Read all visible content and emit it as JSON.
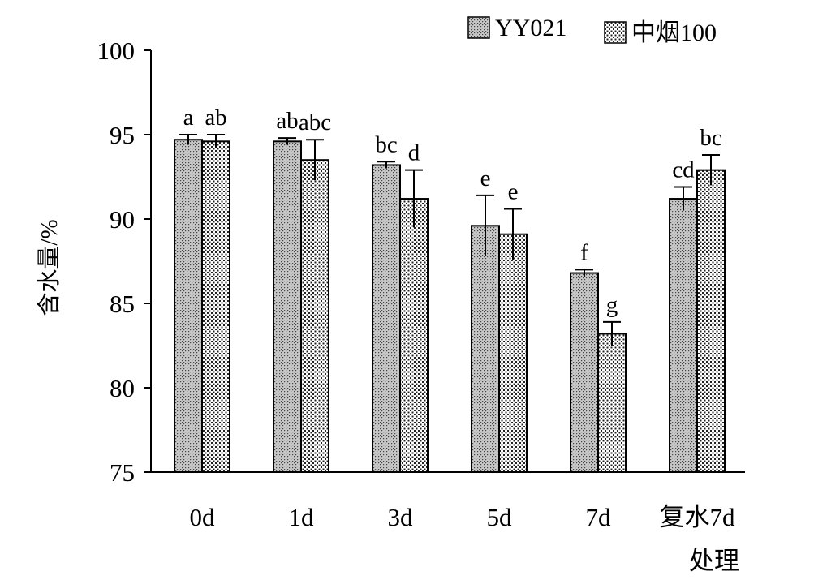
{
  "chart_data": {
    "type": "bar",
    "categories": [
      "0d",
      "1d",
      "3d",
      "5d",
      "7d",
      "复水7d"
    ],
    "series": [
      {
        "name": "YY021",
        "pattern": "dense-dots",
        "values": [
          94.7,
          94.6,
          93.2,
          89.6,
          86.8,
          91.2
        ],
        "errors": [
          0.3,
          0.2,
          0.2,
          1.8,
          0.2,
          0.7
        ],
        "letters": [
          "a",
          "ab",
          "bc",
          "e",
          "f",
          "cd"
        ]
      },
      {
        "name": "中烟100",
        "pattern": "sparse-dots",
        "values": [
          94.6,
          93.5,
          91.2,
          89.1,
          83.2,
          92.9
        ],
        "errors": [
          0.4,
          1.2,
          1.7,
          1.5,
          0.7,
          0.9
        ],
        "letters": [
          "ab",
          "abc",
          "d",
          "e",
          "g",
          "bc"
        ]
      }
    ],
    "ylim": [
      75,
      100
    ],
    "yticks": [
      75,
      80,
      85,
      90,
      95,
      100
    ],
    "ylabel": "含水量/%",
    "xlabel": "处理",
    "legend_position": "top-right",
    "grid": false
  }
}
